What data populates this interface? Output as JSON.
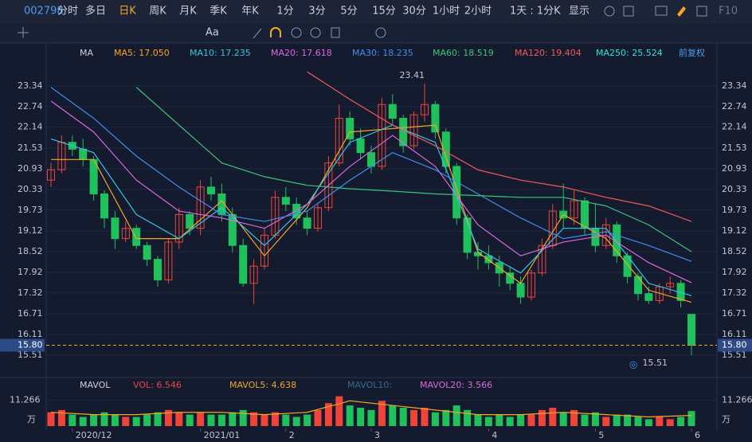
{
  "toolbar": {
    "code": "002798",
    "periods": [
      "分时",
      "多日",
      "日K",
      "周K",
      "月K",
      "季K",
      "年K",
      "1分",
      "3分",
      "5分",
      "15分",
      "30分",
      "1小时",
      "2小时"
    ],
    "active_period": 2,
    "range": "1天 : 1分K",
    "display": "显示",
    "f10": "F10",
    "font_tool": "Aa"
  },
  "chart_data": {
    "type": "candlestick",
    "ma_label": "MA",
    "adjust": "前复权",
    "up_color": "#f0443b",
    "down_color": "#1fc15b",
    "candles": [
      [
        20.6,
        21.1,
        20.4,
        20.9
      ],
      [
        20.9,
        21.9,
        20.8,
        21.7
      ],
      [
        21.7,
        21.9,
        21.3,
        21.5
      ],
      [
        21.5,
        21.8,
        21.0,
        21.2
      ],
      [
        21.2,
        21.3,
        20.0,
        20.2
      ],
      [
        20.2,
        20.3,
        19.2,
        19.5
      ],
      [
        19.5,
        19.7,
        18.6,
        18.9
      ],
      [
        18.9,
        19.4,
        18.8,
        19.2
      ],
      [
        19.2,
        19.3,
        18.6,
        18.7
      ],
      [
        18.7,
        18.8,
        18.1,
        18.3
      ],
      [
        18.3,
        18.4,
        17.5,
        17.7
      ],
      [
        17.7,
        18.9,
        17.6,
        18.8
      ],
      [
        18.8,
        19.8,
        18.6,
        19.6
      ],
      [
        19.6,
        19.7,
        19.0,
        19.2
      ],
      [
        19.2,
        20.6,
        19.0,
        20.4
      ],
      [
        20.4,
        20.7,
        20.0,
        20.2
      ],
      [
        20.2,
        20.5,
        19.4,
        19.6
      ],
      [
        19.6,
        19.8,
        18.5,
        18.7
      ],
      [
        18.7,
        18.9,
        17.5,
        17.6
      ],
      [
        17.6,
        18.3,
        17.0,
        18.1
      ],
      [
        18.1,
        19.2,
        18.0,
        19.0
      ],
      [
        19.0,
        20.3,
        18.9,
        20.1
      ],
      [
        20.1,
        20.4,
        19.7,
        19.9
      ],
      [
        19.9,
        20.1,
        19.3,
        19.5
      ],
      [
        19.5,
        19.7,
        19.0,
        19.2
      ],
      [
        19.2,
        19.9,
        19.1,
        19.8
      ],
      [
        19.8,
        21.3,
        19.7,
        21.1
      ],
      [
        21.1,
        22.8,
        21.0,
        22.4
      ],
      [
        22.4,
        22.6,
        21.6,
        21.8
      ],
      [
        21.8,
        22.1,
        21.2,
        21.4
      ],
      [
        21.4,
        21.6,
        20.8,
        21.0
      ],
      [
        21.0,
        23.0,
        20.9,
        22.8
      ],
      [
        22.8,
        23.1,
        22.2,
        22.4
      ],
      [
        22.4,
        22.5,
        21.4,
        21.6
      ],
      [
        21.6,
        22.6,
        21.5,
        22.5
      ],
      [
        22.5,
        23.41,
        22.3,
        22.8
      ],
      [
        22.8,
        22.9,
        21.8,
        22.0
      ],
      [
        22.0,
        22.1,
        20.8,
        21.0
      ],
      [
        21.0,
        21.1,
        19.3,
        19.5
      ],
      [
        19.5,
        19.6,
        18.3,
        18.5
      ],
      [
        18.5,
        18.8,
        18.0,
        18.4
      ],
      [
        18.4,
        18.7,
        18.0,
        18.2
      ],
      [
        18.2,
        18.4,
        17.5,
        17.9
      ],
      [
        17.9,
        18.1,
        17.4,
        17.6
      ],
      [
        17.6,
        17.8,
        17.0,
        17.2
      ],
      [
        17.2,
        18.0,
        17.1,
        17.9
      ],
      [
        17.9,
        18.9,
        17.8,
        18.7
      ],
      [
        18.7,
        19.9,
        18.6,
        19.7
      ],
      [
        19.7,
        20.5,
        19.2,
        19.5
      ],
      [
        19.5,
        20.3,
        19.3,
        20.0
      ],
      [
        20.0,
        20.1,
        19.0,
        19.2
      ],
      [
        19.2,
        19.9,
        18.5,
        18.7
      ],
      [
        18.7,
        19.5,
        18.6,
        19.3
      ],
      [
        19.3,
        19.4,
        18.2,
        18.4
      ],
      [
        18.4,
        18.5,
        17.6,
        17.8
      ],
      [
        17.8,
        17.9,
        17.1,
        17.3
      ],
      [
        17.3,
        17.5,
        17.0,
        17.1
      ],
      [
        17.1,
        17.6,
        17.0,
        17.5
      ],
      [
        17.5,
        17.8,
        17.3,
        17.6
      ],
      [
        17.6,
        17.7,
        16.9,
        17.1
      ],
      [
        16.7,
        16.7,
        15.51,
        15.8
      ]
    ],
    "ma_x": [
      0,
      4,
      8,
      12,
      16,
      20,
      24,
      28,
      32,
      36,
      40,
      44,
      48,
      52,
      56,
      60
    ],
    "series": [
      {
        "name": "MA5: 17.050",
        "color": "#f5a623",
        "values": [
          21.2,
          21.2,
          18.9,
          18.9,
          20.0,
          18.4,
          19.8,
          22.0,
          22.1,
          22.2,
          18.5,
          17.6,
          19.6,
          18.9,
          17.4,
          17.05
        ]
      },
      {
        "name": "MA10: 17.235",
        "color": "#36c3e6",
        "values": [
          21.8,
          21.4,
          19.6,
          18.9,
          19.8,
          18.7,
          19.9,
          21.7,
          22.2,
          21.7,
          18.6,
          17.9,
          19.2,
          19.2,
          17.6,
          17.24
        ]
      },
      {
        "name": "MA20: 17.618",
        "color": "#e066e0",
        "values": [
          22.9,
          22.0,
          20.6,
          19.7,
          19.5,
          19.2,
          19.9,
          21.0,
          21.9,
          21.0,
          19.3,
          18.4,
          18.8,
          19.0,
          18.2,
          17.62
        ]
      },
      {
        "name": "MA30: 18.235",
        "color": "#3d8ef0",
        "values": [
          23.3,
          22.4,
          21.3,
          20.4,
          19.6,
          19.4,
          19.7,
          20.6,
          21.4,
          20.9,
          20.2,
          19.5,
          18.9,
          19.1,
          18.7,
          18.24
        ]
      },
      {
        "name": "MA60: 18.519",
        "color": "#3cc47c",
        "values": [
          null,
          null,
          23.3,
          22.2,
          21.1,
          20.7,
          20.45,
          20.35,
          20.28,
          20.2,
          20.15,
          20.1,
          20.1,
          19.85,
          19.3,
          18.52
        ]
      },
      {
        "name": "MA120: 19.404",
        "color": "#f05a5a",
        "values": [
          null,
          null,
          null,
          null,
          null,
          null,
          23.75,
          22.95,
          22.2,
          21.6,
          20.9,
          20.6,
          20.4,
          20.1,
          19.85,
          19.4
        ]
      },
      {
        "name": "MA250: 25.524",
        "color": "#2fe0e0",
        "values": [
          null,
          null,
          null,
          null,
          null,
          null,
          null,
          null,
          null,
          null,
          null,
          null,
          null,
          null,
          null,
          null
        ]
      }
    ],
    "ylim": [
      15.14,
      23.87
    ],
    "yticks": [
      23.34,
      22.74,
      22.14,
      21.53,
      20.93,
      20.33,
      19.73,
      19.12,
      18.52,
      17.92,
      17.32,
      16.71,
      16.11,
      15.51
    ],
    "last_price": {
      "value": 15.8,
      "label": "15.80"
    },
    "high_label": "23.41",
    "low_label": "15.51",
    "xlabels": [
      {
        "index": 2,
        "label": "2020/12"
      },
      {
        "index": 14,
        "label": "2021/01"
      },
      {
        "index": 22,
        "label": "2"
      },
      {
        "index": 30,
        "label": "3"
      },
      {
        "index": 41,
        "label": "4"
      },
      {
        "index": 51,
        "label": "5"
      },
      {
        "index": 60,
        "label": "6"
      }
    ],
    "volume": {
      "label": "MAVOL",
      "unit": "万",
      "ylim": [
        0,
        13.2
      ],
      "yticks": [
        11.266
      ],
      "values": [
        6,
        7,
        5,
        4,
        5,
        6,
        5,
        4,
        4,
        5,
        6,
        7,
        6,
        5,
        6,
        5,
        5,
        6,
        7,
        6,
        5,
        6,
        5,
        4,
        5,
        7,
        10,
        13,
        9,
        8,
        7,
        11,
        9,
        8,
        7,
        8,
        6,
        7,
        9,
        7,
        5,
        4,
        5,
        4,
        5,
        5,
        7,
        8,
        6,
        7,
        5,
        6,
        4,
        5,
        5,
        4,
        3,
        4,
        3,
        4,
        6.546
      ],
      "series": [
        {
          "name": "VOL: 6.546",
          "color": "#f0443b",
          "values": null
        },
        {
          "name": "MAVOL5: 4.638",
          "color": "#f5a623",
          "values": [
            6,
            5,
            5,
            6,
            6,
            5,
            6,
            11,
            9,
            7,
            5,
            5,
            6,
            5,
            4,
            4.638
          ]
        },
        {
          "name": "MAVOL10:",
          "color": "#2e6f8e",
          "values": null
        },
        {
          "name": "MAVOL20: 3.566",
          "color": "#e066e0",
          "values": null
        }
      ]
    }
  }
}
